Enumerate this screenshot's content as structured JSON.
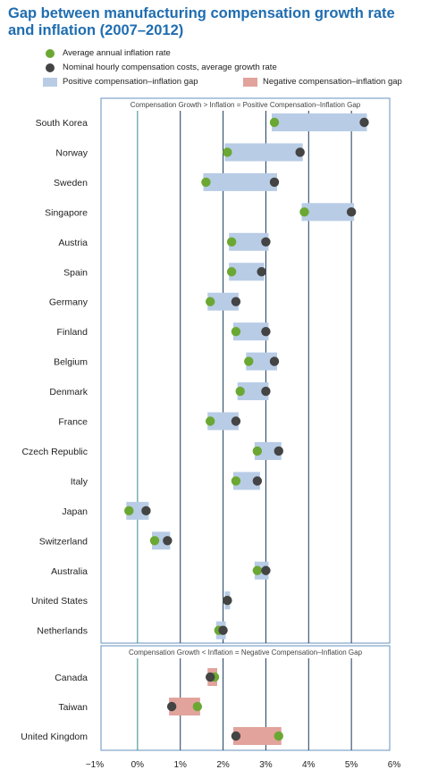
{
  "title": "Gap between manufacturing compensation growth rate and inflation (2007–2012)",
  "legend": {
    "inflation": "Average annual inflation rate",
    "compensation": "Nominal hourly compensation costs, average growth rate",
    "positive_gap": "Positive compensation–inflation gap",
    "negative_gap": "Negative compensation–inflation gap"
  },
  "colors": {
    "title": "#1f6db0",
    "inflation_dot": "#6aa833",
    "compensation_dot": "#444444",
    "positive_bar": "#b8cce6",
    "negative_bar": "#e1a39b",
    "panel_border": "#7fa3c7",
    "grid": "#1b3a5c",
    "zero_line": "#2f8a8a"
  },
  "chart_data": {
    "type": "dot-range",
    "xlim": [
      -1,
      6
    ],
    "x_tick_labels": [
      "−1%",
      "0%",
      "1%",
      "2%",
      "3%",
      "4%",
      "5%",
      "6%"
    ],
    "x_tick_values": [
      -1,
      0,
      1,
      2,
      3,
      4,
      5,
      6
    ],
    "panels": [
      {
        "label": "Compensation Growth > Inflation = Positive Compensation–Inflation Gap",
        "gap": "positive",
        "rows": [
          {
            "country": "South Korea",
            "inflation": 3.2,
            "compensation": 5.3
          },
          {
            "country": "Norway",
            "inflation": 2.1,
            "compensation": 3.8
          },
          {
            "country": "Sweden",
            "inflation": 1.6,
            "compensation": 3.2
          },
          {
            "country": "Singapore",
            "inflation": 3.9,
            "compensation": 5.0
          },
          {
            "country": "Austria",
            "inflation": 2.2,
            "compensation": 3.0
          },
          {
            "country": "Spain",
            "inflation": 2.2,
            "compensation": 2.9
          },
          {
            "country": "Germany",
            "inflation": 1.7,
            "compensation": 2.3
          },
          {
            "country": "Finland",
            "inflation": 2.3,
            "compensation": 3.0
          },
          {
            "country": "Belgium",
            "inflation": 2.6,
            "compensation": 3.2
          },
          {
            "country": "Denmark",
            "inflation": 2.4,
            "compensation": 3.0
          },
          {
            "country": "France",
            "inflation": 1.7,
            "compensation": 2.3
          },
          {
            "country": "Czech Republic",
            "inflation": 2.8,
            "compensation": 3.3
          },
          {
            "country": "Italy",
            "inflation": 2.3,
            "compensation": 2.8
          },
          {
            "country": "Japan",
            "inflation": -0.2,
            "compensation": 0.2
          },
          {
            "country": "Switzerland",
            "inflation": 0.4,
            "compensation": 0.7
          },
          {
            "country": "Australia",
            "inflation": 2.8,
            "compensation": 3.0
          },
          {
            "country": "United States",
            "inflation": 2.1,
            "compensation": 2.1
          },
          {
            "country": "Netherlands",
            "inflation": 1.9,
            "compensation": 2.0
          }
        ]
      },
      {
        "label": "Compensation Growth < Inflation = Negative Compensation–Inflation Gap",
        "gap": "negative",
        "rows": [
          {
            "country": "Canada",
            "inflation": 1.8,
            "compensation": 1.7
          },
          {
            "country": "Taiwan",
            "inflation": 1.4,
            "compensation": 0.8
          },
          {
            "country": "United Kingdom",
            "inflation": 3.3,
            "compensation": 2.3
          }
        ]
      }
    ]
  }
}
